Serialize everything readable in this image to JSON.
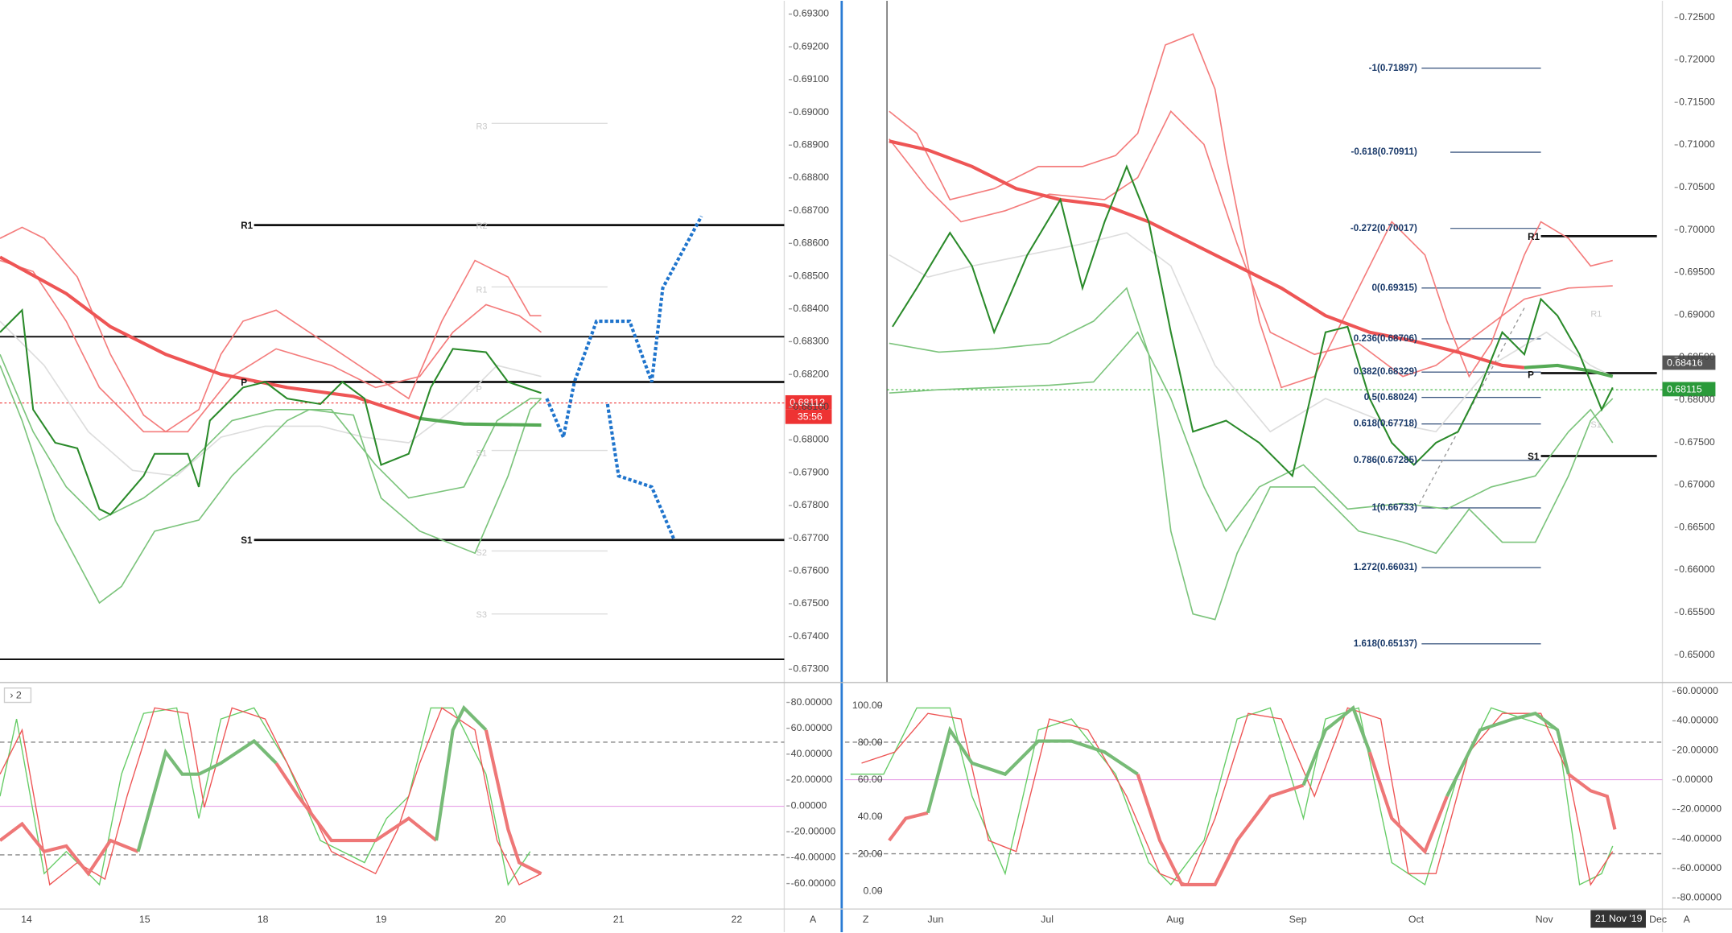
{
  "left": {
    "price_axis": [
      "0.69300",
      "0.69200",
      "0.69100",
      "0.69000",
      "0.68900",
      "0.68800",
      "0.68700",
      "0.68600",
      "0.68500",
      "0.68400",
      "0.68300",
      "0.68200",
      "0.68100",
      "0.68000",
      "0.67900",
      "0.67800",
      "0.67700",
      "0.67600",
      "0.67500",
      "0.67400",
      "0.67300"
    ],
    "osc_axis": [
      "80.00000",
      "60.00000",
      "40.00000",
      "20.00000",
      "0.00000",
      "-20.00000",
      "-40.00000",
      "-60.00000"
    ],
    "x_axis": [
      "14",
      "15",
      "18",
      "19",
      "20",
      "21",
      "22"
    ],
    "pivots": {
      "r1": "R1",
      "p": "P",
      "s1": "S1"
    },
    "faint_pivots": [
      "R3",
      "R2",
      "R1",
      "P",
      "S1",
      "S2",
      "S3"
    ],
    "price_tag": "0.68112",
    "countdown": "35:56",
    "osc_label": "› 2",
    "scale_button": "A"
  },
  "right": {
    "price_axis": [
      "0.72500",
      "0.72000",
      "0.71500",
      "0.71000",
      "0.70500",
      "0.70000",
      "0.69500",
      "0.69000",
      "0.68500",
      "0.68000",
      "0.67500",
      "0.67000",
      "0.66500",
      "0.66000",
      "0.65500",
      "0.65000"
    ],
    "osc_left_axis": [
      "100.00",
      "80.00",
      "60.00",
      "40.00",
      "20.00",
      "0.00"
    ],
    "osc_right_axis": [
      "60.00000",
      "40.00000",
      "20.00000",
      "0.00000",
      "-20.00000",
      "-40.00000",
      "-60.00000",
      "-80.00000"
    ],
    "x_axis": [
      "Jun",
      "Jul",
      "Aug",
      "Sep",
      "Oct",
      "Nov",
      "Dec"
    ],
    "date_tag": "21 Nov '19",
    "pivots": {
      "r1": "R1",
      "p": "P",
      "s1": "S1"
    },
    "faint_pivots": [
      "R1",
      "S1"
    ],
    "fib_levels": [
      "-1(0.71897)",
      "-0.618(0.70911)",
      "-0.272(0.70017)",
      "0(0.69315)",
      "0.236(0.68706)",
      "0.382(0.68329)",
      "0.5(0.68024)",
      "0.618(0.67718)",
      "0.786(0.67285)",
      "1(0.66733)",
      "1.272(0.66031)",
      "1.618(0.65137)"
    ],
    "price_tags": [
      "0.68416",
      "0.68115"
    ],
    "zoom_button": "Z",
    "scale_button": "A"
  }
}
